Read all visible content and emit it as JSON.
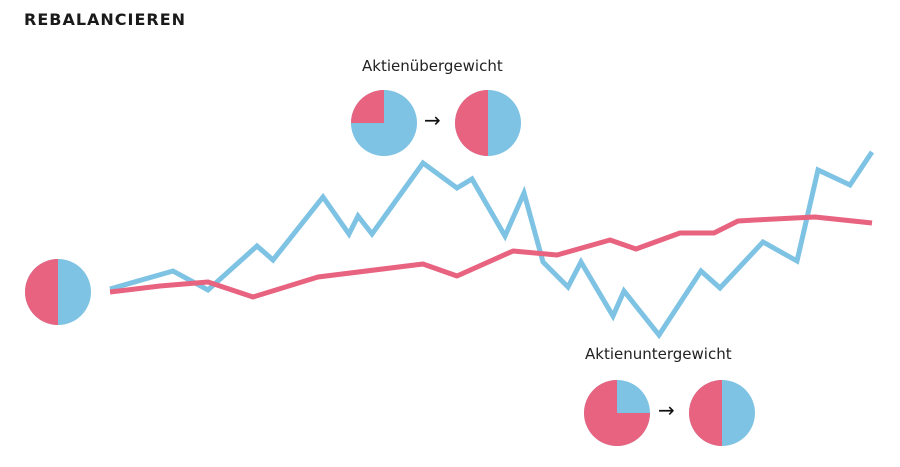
{
  "title": "REBALANCIEREN",
  "labels": {
    "overweight": "Aktienübergewicht",
    "underweight": "Aktienuntergewicht",
    "arrow": "→"
  },
  "colors": {
    "stocks": "#7ec3e3",
    "bonds": "#e8637f"
  },
  "pies": {
    "start": {
      "bonds_share": 0.5
    },
    "overweight_before": {
      "bonds_share": 0.25
    },
    "overweight_after": {
      "bonds_share": 0.5
    },
    "underweight_before": {
      "bonds_share": 0.75
    },
    "underweight_after": {
      "bonds_share": 0.5
    }
  }
}
